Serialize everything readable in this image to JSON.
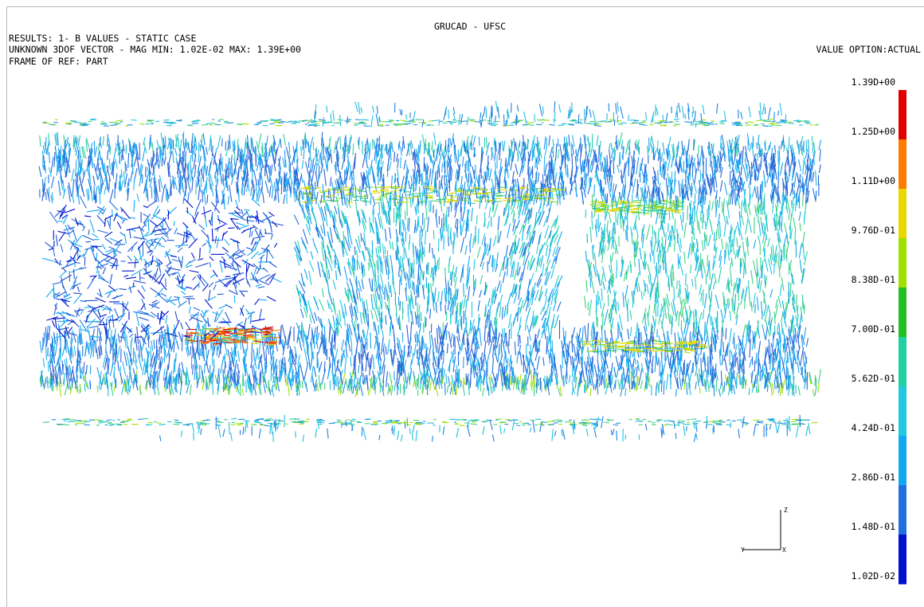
{
  "header": {
    "title": "GRUCAD - UFSC",
    "lines": [
      "RESULTS: 1- B VALUES - STATIC CASE",
      "UNKNOWN 3DOF VECTOR - MAG MIN: 1.02E-02 MAX: 1.39E+00",
      "FRAME OF REF: PART"
    ],
    "value_option": "VALUE OPTION:ACTUAL"
  },
  "legend": {
    "labels": [
      "1.39D+00",
      "1.25D+00",
      "1.11D+00",
      "9.76D-01",
      "8.38D-01",
      "7.00D-01",
      "5.62D-01",
      "4.24D-01",
      "2.86D-01",
      "1.48D-01",
      "1.02D-02"
    ]
  },
  "triad": {
    "z": "Z",
    "y": "Y",
    "x": "X"
  }
}
